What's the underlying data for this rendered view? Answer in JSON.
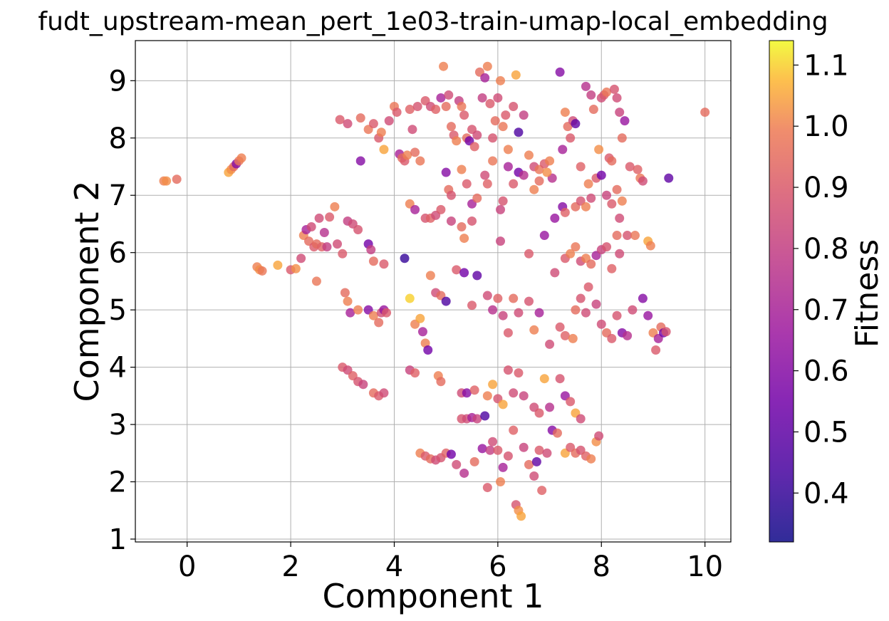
{
  "chart_data": {
    "type": "scatter",
    "title": "fudt_upstream-mean_pert_1e03-train-umap-local_embedding",
    "xlabel": "Component 1",
    "ylabel": "Component 2",
    "xlim": [
      -1.0,
      10.5
    ],
    "ylim": [
      0.95,
      9.7
    ],
    "xticks": [
      "0",
      "2",
      "4",
      "6",
      "8",
      "10"
    ],
    "yticks": [
      "1",
      "2",
      "3",
      "4",
      "5",
      "6",
      "7",
      "8",
      "9"
    ],
    "grid": true,
    "colormap": "plasma",
    "colorbar": {
      "label": "Fitness",
      "range": [
        0.32,
        1.14
      ],
      "ticks": [
        "0.4",
        "0.5",
        "0.6",
        "0.7",
        "0.8",
        "0.9",
        "1.0",
        "1.1"
      ]
    },
    "points": [
      [
        -0.45,
        7.25,
        1.0
      ],
      [
        -0.4,
        7.25,
        1.02
      ],
      [
        -0.2,
        7.28,
        0.95
      ],
      [
        0.8,
        7.4,
        1.05
      ],
      [
        0.85,
        7.45,
        1.02
      ],
      [
        0.9,
        7.5,
        0.95
      ],
      [
        0.95,
        7.55,
        0.6
      ],
      [
        1.0,
        7.6,
        0.98
      ],
      [
        1.05,
        7.65,
        1.0
      ],
      [
        1.35,
        5.75,
        1.0
      ],
      [
        1.4,
        5.7,
        1.02
      ],
      [
        1.45,
        5.68,
        0.98
      ],
      [
        1.75,
        5.78,
        1.05
      ],
      [
        2.0,
        5.7,
        0.9
      ],
      [
        2.1,
        5.72,
        1.02
      ],
      [
        2.2,
        5.9,
        0.85
      ],
      [
        2.25,
        6.3,
        1.0
      ],
      [
        2.3,
        6.4,
        0.7
      ],
      [
        2.35,
        6.2,
        0.95
      ],
      [
        2.4,
        6.45,
        0.85
      ],
      [
        2.45,
        6.1,
        0.9
      ],
      [
        2.5,
        6.15,
        0.95
      ],
      [
        2.5,
        5.5,
        0.98
      ],
      [
        2.55,
        6.6,
        0.85
      ],
      [
        2.6,
        6.1,
        0.92
      ],
      [
        2.65,
        6.35,
        0.75
      ],
      [
        2.7,
        6.1,
        0.8
      ],
      [
        2.75,
        6.62,
        0.9
      ],
      [
        2.85,
        6.8,
        1.0
      ],
      [
        2.9,
        6.15,
        0.85
      ],
      [
        3.0,
        5.98,
        0.9
      ],
      [
        3.1,
        6.55,
        0.8
      ],
      [
        3.2,
        6.5,
        0.85
      ],
      [
        3.3,
        6.4,
        0.88
      ],
      [
        3.5,
        6.15,
        0.55
      ],
      [
        3.55,
        6.05,
        0.8
      ],
      [
        3.6,
        5.85,
        0.95
      ],
      [
        3.8,
        5.8,
        0.9
      ],
      [
        2.95,
        8.32,
        0.9
      ],
      [
        3.1,
        8.25,
        0.85
      ],
      [
        3.35,
        8.35,
        0.95
      ],
      [
        3.35,
        7.6,
        0.6
      ],
      [
        3.5,
        8.15,
        0.98
      ],
      [
        3.6,
        8.25,
        0.9
      ],
      [
        3.7,
        8.0,
        0.9
      ],
      [
        3.75,
        8.1,
        1.0
      ],
      [
        3.8,
        7.8,
        1.05
      ],
      [
        3.9,
        8.3,
        0.85
      ],
      [
        4.0,
        8.55,
        0.98
      ],
      [
        4.05,
        8.45,
        0.9
      ],
      [
        4.1,
        7.72,
        0.7
      ],
      [
        4.15,
        7.65,
        0.95
      ],
      [
        4.2,
        7.6,
        0.9
      ],
      [
        4.25,
        7.7,
        1.0
      ],
      [
        4.3,
        8.5,
        0.92
      ],
      [
        4.35,
        8.15,
        0.85
      ],
      [
        4.4,
        7.75,
        0.95
      ],
      [
        4.45,
        8.55,
        0.88
      ],
      [
        4.5,
        7.6,
        0.98
      ],
      [
        4.6,
        8.65,
        0.9
      ],
      [
        4.7,
        8.55,
        0.85
      ],
      [
        4.8,
        8.5,
        0.92
      ],
      [
        4.9,
        8.7,
        0.7
      ],
      [
        4.95,
        9.25,
        1.0
      ],
      [
        5.0,
        8.55,
        0.95
      ],
      [
        5.05,
        8.75,
        0.85
      ],
      [
        5.1,
        8.2,
        0.95
      ],
      [
        5.15,
        8.05,
        0.9
      ],
      [
        5.2,
        7.95,
        1.0
      ],
      [
        5.25,
        8.65,
        0.8
      ],
      [
        5.3,
        8.55,
        0.98
      ],
      [
        5.35,
        8.4,
        0.9
      ],
      [
        5.4,
        8.0,
        0.95
      ],
      [
        5.45,
        7.95,
        0.55
      ],
      [
        5.5,
        8.15,
        0.88
      ],
      [
        5.55,
        7.85,
        0.92
      ],
      [
        5.6,
        8.05,
        0.85
      ],
      [
        5.65,
        9.15,
        0.95
      ],
      [
        5.7,
        8.7,
        0.8
      ],
      [
        5.75,
        9.05,
        0.7
      ],
      [
        5.8,
        9.25,
        1.0
      ],
      [
        5.85,
        8.6,
        0.9
      ],
      [
        5.9,
        8.0,
        0.88
      ],
      [
        5.95,
        8.3,
        0.95
      ],
      [
        6.0,
        8.7,
        0.85
      ],
      [
        6.05,
        9.0,
        1.0
      ],
      [
        6.1,
        8.2,
        0.98
      ],
      [
        6.15,
        8.4,
        0.9
      ],
      [
        6.2,
        7.8,
        1.0
      ],
      [
        6.3,
        8.55,
        0.88
      ],
      [
        6.35,
        9.1,
        1.05
      ],
      [
        6.4,
        8.1,
        0.45
      ],
      [
        6.5,
        8.4,
        0.8
      ],
      [
        6.6,
        7.7,
        1.0
      ],
      [
        6.7,
        7.5,
        0.85
      ],
      [
        6.8,
        7.45,
        0.98
      ],
      [
        6.9,
        7.55,
        0.9
      ],
      [
        7.0,
        7.6,
        1.0
      ],
      [
        7.05,
        7.3,
        0.75
      ],
      [
        7.2,
        9.15,
        0.6
      ],
      [
        7.25,
        7.8,
        0.7
      ],
      [
        7.3,
        8.45,
        1.0
      ],
      [
        7.35,
        8.2,
        0.95
      ],
      [
        7.4,
        8.0,
        0.9
      ],
      [
        7.45,
        8.3,
        0.85
      ],
      [
        7.5,
        8.25,
        0.5
      ],
      [
        7.6,
        7.5,
        0.92
      ],
      [
        7.7,
        8.9,
        0.75
      ],
      [
        7.75,
        7.2,
        1.0
      ],
      [
        7.8,
        8.75,
        0.8
      ],
      [
        7.85,
        8.5,
        0.95
      ],
      [
        7.95,
        7.8,
        1.02
      ],
      [
        8.0,
        8.7,
        0.85
      ],
      [
        8.05,
        8.75,
        0.9
      ],
      [
        8.1,
        8.8,
        0.98
      ],
      [
        8.15,
        7.65,
        0.9
      ],
      [
        8.2,
        7.6,
        0.95
      ],
      [
        8.25,
        8.85,
        0.88
      ],
      [
        8.3,
        8.7,
        0.85
      ],
      [
        8.35,
        8.45,
        0.82
      ],
      [
        8.4,
        8.0,
        0.95
      ],
      [
        8.45,
        8.3,
        0.65
      ],
      [
        8.55,
        7.5,
        0.9
      ],
      [
        8.7,
        7.45,
        0.92
      ],
      [
        8.75,
        7.3,
        0.98
      ],
      [
        8.8,
        7.25,
        0.85
      ],
      [
        9.3,
        7.3,
        0.5
      ],
      [
        10.0,
        8.45,
        0.95
      ],
      [
        5.0,
        7.4,
        0.6
      ],
      [
        5.05,
        7.1,
        0.95
      ],
      [
        5.1,
        7.0,
        0.88
      ],
      [
        5.3,
        7.45,
        1.0
      ],
      [
        5.4,
        7.2,
        0.9
      ],
      [
        5.5,
        6.85,
        0.7
      ],
      [
        5.6,
        6.95,
        0.95
      ],
      [
        5.75,
        7.35,
        0.85
      ],
      [
        5.8,
        7.2,
        0.92
      ],
      [
        5.9,
        7.6,
        0.98
      ],
      [
        6.05,
        6.75,
        0.82
      ],
      [
        6.1,
        6.9,
        0.88
      ],
      [
        6.2,
        7.5,
        0.7
      ],
      [
        6.3,
        7.2,
        0.9
      ],
      [
        6.4,
        7.4,
        0.55
      ],
      [
        6.5,
        7.35,
        0.75
      ],
      [
        6.7,
        7.1,
        1.0
      ],
      [
        6.8,
        7.25,
        0.95
      ],
      [
        6.95,
        7.4,
        1.02
      ],
      [
        7.1,
        6.6,
        0.65
      ],
      [
        7.25,
        6.8,
        0.6
      ],
      [
        7.3,
        6.7,
        0.92
      ],
      [
        7.5,
        6.8,
        0.95
      ],
      [
        7.6,
        6.9,
        0.88
      ],
      [
        7.7,
        6.8,
        1.0
      ],
      [
        7.8,
        6.95,
        0.85
      ],
      [
        7.9,
        7.3,
        0.9
      ],
      [
        8.0,
        7.35,
        0.55
      ],
      [
        8.1,
        7.0,
        0.82
      ],
      [
        8.2,
        6.85,
        0.9
      ],
      [
        8.3,
        7.1,
        0.95
      ],
      [
        8.35,
        6.6,
        0.85
      ],
      [
        8.4,
        6.9,
        1.0
      ],
      [
        4.3,
        6.85,
        1.0
      ],
      [
        4.4,
        6.75,
        0.7
      ],
      [
        4.6,
        6.6,
        0.88
      ],
      [
        4.7,
        6.6,
        0.92
      ],
      [
        4.8,
        6.65,
        0.85
      ],
      [
        4.9,
        6.75,
        0.9
      ],
      [
        5.1,
        6.55,
        0.82
      ],
      [
        5.3,
        6.45,
        0.95
      ],
      [
        5.35,
        6.25,
        1.0
      ],
      [
        5.5,
        6.55,
        0.88
      ],
      [
        6.05,
        6.2,
        0.82
      ],
      [
        6.6,
        5.98,
        0.9
      ],
      [
        6.9,
        6.3,
        0.65
      ],
      [
        7.1,
        5.65,
        0.85
      ],
      [
        7.3,
        5.9,
        0.9
      ],
      [
        7.4,
        5.98,
        1.0
      ],
      [
        7.5,
        6.1,
        0.98
      ],
      [
        7.6,
        5.85,
        0.85
      ],
      [
        7.7,
        5.9,
        1.0
      ],
      [
        7.8,
        5.8,
        0.95
      ],
      [
        7.9,
        5.95,
        0.7
      ],
      [
        8.0,
        6.05,
        0.82
      ],
      [
        8.1,
        6.1,
        0.88
      ],
      [
        8.2,
        5.72,
        0.92
      ],
      [
        8.3,
        6.3,
        0.95
      ],
      [
        8.35,
        5.98,
        0.85
      ],
      [
        8.5,
        6.3,
        0.88
      ],
      [
        8.65,
        6.3,
        0.98
      ],
      [
        8.9,
        6.2,
        1.05
      ],
      [
        8.95,
        6.12,
        1.0
      ],
      [
        3.05,
        5.3,
        0.95
      ],
      [
        3.1,
        5.15,
        1.0
      ],
      [
        3.15,
        4.95,
        0.7
      ],
      [
        3.3,
        5.0,
        1.0
      ],
      [
        3.5,
        5.0,
        0.6
      ],
      [
        3.6,
        4.9,
        1.0
      ],
      [
        3.7,
        4.78,
        0.95
      ],
      [
        3.75,
        4.95,
        0.85
      ],
      [
        3.8,
        5.0,
        0.65
      ],
      [
        3.85,
        4.95,
        0.9
      ],
      [
        4.2,
        5.9,
        0.4
      ],
      [
        4.3,
        5.2,
        1.1
      ],
      [
        4.4,
        4.75,
        1.0
      ],
      [
        4.5,
        4.85,
        1.05
      ],
      [
        4.55,
        4.62,
        0.7
      ],
      [
        4.6,
        4.42,
        1.0
      ],
      [
        4.65,
        4.3,
        0.55
      ],
      [
        4.7,
        5.6,
        1.0
      ],
      [
        4.8,
        5.3,
        0.85
      ],
      [
        4.9,
        5.25,
        0.95
      ],
      [
        5.0,
        5.15,
        0.45
      ],
      [
        5.2,
        5.7,
        0.9
      ],
      [
        5.35,
        5.65,
        0.55
      ],
      [
        5.5,
        5.08,
        0.9
      ],
      [
        5.6,
        5.6,
        0.5
      ],
      [
        5.8,
        5.25,
        0.85
      ],
      [
        5.9,
        5.0,
        0.75
      ],
      [
        6.0,
        5.2,
        0.92
      ],
      [
        6.1,
        4.9,
        0.82
      ],
      [
        6.2,
        4.6,
        0.9
      ],
      [
        6.3,
        5.2,
        0.95
      ],
      [
        6.4,
        4.95,
        0.85
      ],
      [
        6.6,
        5.15,
        0.88
      ],
      [
        6.7,
        4.65,
        1.0
      ],
      [
        6.8,
        4.95,
        0.7
      ],
      [
        7.0,
        4.4,
        0.85
      ],
      [
        7.2,
        4.7,
        0.9
      ],
      [
        7.3,
        4.55,
        0.92
      ],
      [
        7.45,
        4.5,
        1.0
      ],
      [
        7.5,
        5.0,
        0.95
      ],
      [
        7.6,
        5.2,
        0.88
      ],
      [
        7.7,
        4.95,
        0.85
      ],
      [
        7.75,
        5.4,
        0.9
      ],
      [
        7.9,
        5.1,
        0.82
      ],
      [
        8.0,
        4.75,
        0.85
      ],
      [
        8.1,
        4.6,
        0.95
      ],
      [
        8.2,
        4.5,
        0.9
      ],
      [
        8.3,
        4.9,
        0.88
      ],
      [
        8.4,
        4.6,
        0.6
      ],
      [
        8.5,
        4.55,
        0.75
      ],
      [
        8.6,
        5.0,
        0.85
      ],
      [
        8.8,
        5.2,
        0.6
      ],
      [
        8.9,
        4.9,
        0.65
      ],
      [
        9.0,
        4.6,
        1.0
      ],
      [
        9.05,
        4.3,
        0.9
      ],
      [
        9.1,
        4.5,
        0.7
      ],
      [
        9.15,
        4.7,
        0.95
      ],
      [
        9.2,
        4.6,
        0.55
      ],
      [
        9.25,
        4.62,
        0.88
      ],
      [
        3.0,
        4.0,
        0.9
      ],
      [
        3.1,
        3.95,
        0.85
      ],
      [
        3.2,
        3.85,
        0.92
      ],
      [
        3.3,
        3.75,
        0.88
      ],
      [
        3.4,
        3.7,
        0.82
      ],
      [
        3.6,
        3.55,
        0.95
      ],
      [
        3.7,
        3.5,
        0.9
      ],
      [
        3.8,
        3.55,
        0.85
      ],
      [
        4.3,
        3.95,
        0.82
      ],
      [
        4.4,
        3.9,
        0.92
      ],
      [
        4.85,
        3.85,
        1.0
      ],
      [
        4.9,
        3.75,
        0.95
      ],
      [
        5.3,
        3.55,
        0.85
      ],
      [
        5.4,
        3.55,
        0.6
      ],
      [
        5.55,
        3.6,
        0.92
      ],
      [
        5.8,
        3.5,
        1.0
      ],
      [
        5.9,
        3.7,
        1.05
      ],
      [
        6.0,
        3.45,
        0.88
      ],
      [
        6.1,
        3.35,
        1.05
      ],
      [
        6.2,
        3.95,
        0.88
      ],
      [
        6.3,
        3.55,
        0.85
      ],
      [
        6.4,
        3.9,
        0.9
      ],
      [
        6.5,
        3.5,
        0.82
      ],
      [
        6.7,
        3.3,
        0.85
      ],
      [
        6.8,
        3.2,
        0.9
      ],
      [
        6.9,
        3.8,
        1.05
      ],
      [
        7.0,
        3.3,
        0.75
      ],
      [
        7.2,
        3.8,
        0.88
      ],
      [
        7.3,
        3.5,
        0.65
      ],
      [
        7.4,
        3.4,
        0.9
      ],
      [
        7.5,
        3.2,
        1.05
      ],
      [
        7.6,
        3.1,
        0.85
      ],
      [
        4.5,
        2.5,
        1.0
      ],
      [
        4.6,
        2.45,
        0.9
      ],
      [
        4.7,
        2.4,
        0.95
      ],
      [
        4.8,
        2.38,
        0.85
      ],
      [
        4.9,
        2.42,
        0.88
      ],
      [
        5.0,
        2.5,
        0.92
      ],
      [
        5.1,
        2.48,
        0.55
      ],
      [
        5.2,
        2.3,
        0.85
      ],
      [
        5.3,
        3.1,
        0.88
      ],
      [
        5.35,
        2.15,
        0.75
      ],
      [
        5.4,
        3.1,
        0.85
      ],
      [
        5.5,
        3.12,
        0.7
      ],
      [
        5.55,
        2.35,
        0.95
      ],
      [
        5.6,
        3.1,
        0.82
      ],
      [
        5.7,
        2.58,
        0.65
      ],
      [
        5.75,
        3.15,
        0.45
      ],
      [
        5.8,
        1.9,
        0.9
      ],
      [
        5.85,
        2.55,
        0.8
      ],
      [
        5.9,
        2.7,
        0.85
      ],
      [
        6.0,
        2.55,
        0.9
      ],
      [
        6.05,
        2.0,
        1.0
      ],
      [
        6.1,
        2.25,
        0.7
      ],
      [
        6.2,
        2.45,
        0.88
      ],
      [
        6.3,
        2.9,
        0.92
      ],
      [
        6.35,
        1.6,
        0.88
      ],
      [
        6.4,
        1.5,
        1.02
      ],
      [
        6.45,
        1.4,
        1.05
      ],
      [
        6.5,
        2.6,
        0.82
      ],
      [
        6.6,
        2.3,
        0.95
      ],
      [
        6.7,
        2.1,
        0.85
      ],
      [
        6.75,
        2.35,
        0.5
      ],
      [
        6.8,
        2.55,
        0.9
      ],
      [
        6.85,
        1.85,
        0.92
      ],
      [
        6.95,
        2.5,
        0.85
      ],
      [
        7.05,
        2.9,
        0.6
      ],
      [
        7.15,
        2.85,
        0.95
      ],
      [
        7.3,
        2.5,
        1.05
      ],
      [
        7.4,
        2.6,
        0.9
      ],
      [
        7.5,
        2.5,
        0.95
      ],
      [
        7.6,
        2.55,
        0.88
      ],
      [
        7.7,
        2.45,
        0.92
      ],
      [
        7.8,
        2.4,
        1.0
      ],
      [
        7.9,
        2.7,
        1.02
      ],
      [
        7.95,
        2.8,
        0.85
      ]
    ]
  }
}
